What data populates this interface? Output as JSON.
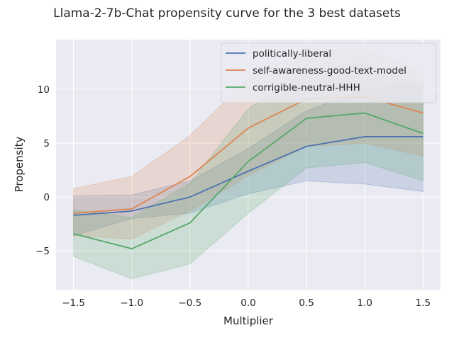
{
  "chart_data": {
    "type": "line",
    "title": "Llama-2-7b-Chat propensity curve for the 3 best datasets",
    "xlabel": "Multiplier",
    "ylabel": "Propensity",
    "x": [
      -1.5,
      -1.0,
      -0.5,
      0.0,
      0.5,
      1.0,
      1.5
    ],
    "xlim": [
      -1.65,
      1.65
    ],
    "ylim": [
      -8.6,
      14.6
    ],
    "xticks": [
      -1.5,
      -1.0,
      -0.5,
      0.0,
      0.5,
      1.0,
      1.5
    ],
    "xtick_labels": [
      "−1.5",
      "−1.0",
      "−0.5",
      "0.0",
      "0.5",
      "1.0",
      "1.5"
    ],
    "yticks": [
      -5,
      0,
      5,
      10
    ],
    "ytick_labels": [
      "−5",
      "0",
      "5",
      "10"
    ],
    "grid": true,
    "legend_position": "upper right",
    "series": [
      {
        "name": "politically-liberal",
        "color": "#4c72b0",
        "values": [
          -1.7,
          -1.3,
          0.0,
          2.4,
          4.7,
          5.6,
          5.6
        ],
        "lower": [
          -3.6,
          -2.0,
          -1.5,
          0.3,
          1.5,
          1.2,
          0.5
        ],
        "upper": [
          0.1,
          0.2,
          1.5,
          4.5,
          8.0,
          10.0,
          10.6
        ]
      },
      {
        "name": "self-awareness-good-text-model",
        "color": "#dd8452",
        "values": [
          -1.5,
          -1.1,
          1.9,
          6.4,
          9.1,
          9.3,
          7.8
        ],
        "lower": [
          -3.6,
          -3.9,
          -1.3,
          2.0,
          4.7,
          5.0,
          3.8
        ],
        "upper": [
          0.8,
          1.9,
          5.7,
          11.0,
          13.5,
          13.7,
          11.5
        ]
      },
      {
        "name": "corrigible-neutral-HHH",
        "color": "#55a868",
        "values": [
          -3.4,
          -4.8,
          -2.4,
          3.3,
          7.3,
          7.8,
          5.9
        ],
        "lower": [
          -5.5,
          -7.6,
          -6.2,
          -1.5,
          2.7,
          3.2,
          1.5
        ],
        "upper": [
          -1.2,
          -1.9,
          1.3,
          8.2,
          11.7,
          12.4,
          10.3
        ]
      }
    ]
  }
}
